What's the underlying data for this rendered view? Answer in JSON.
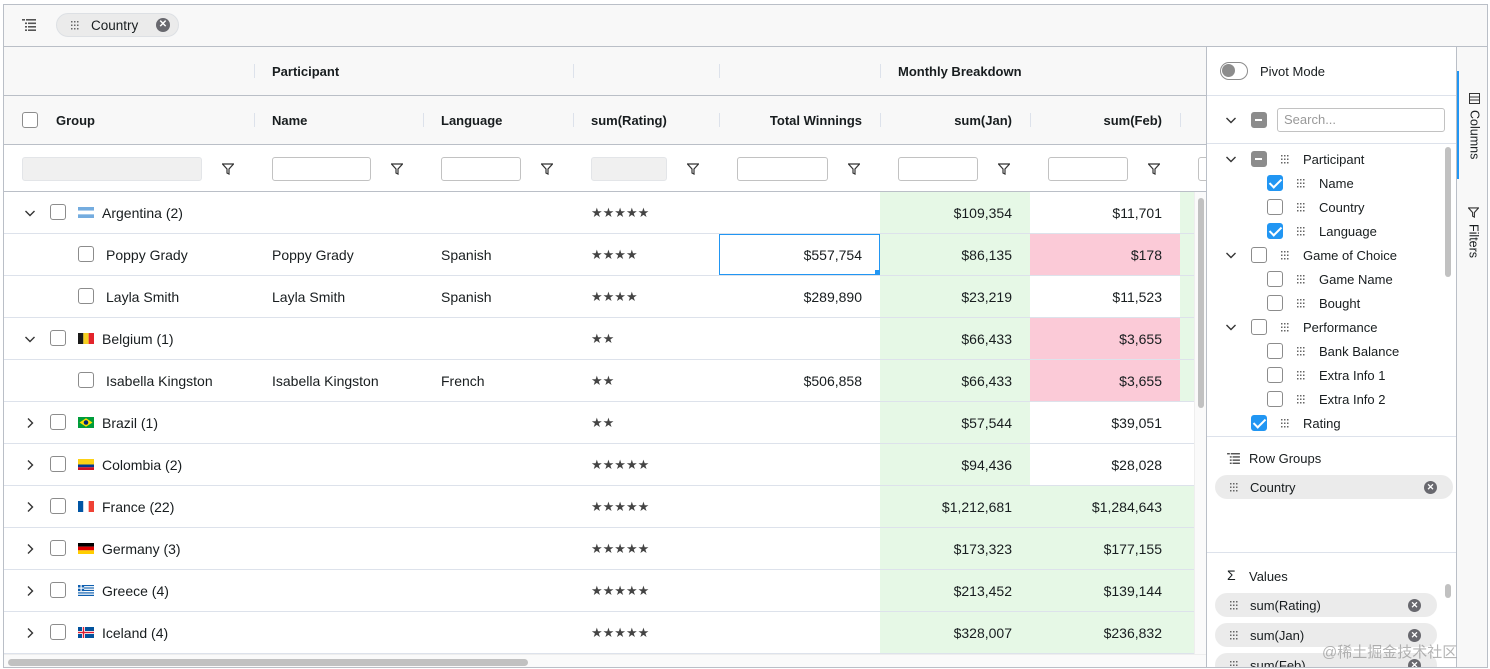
{
  "row_group_bar": {
    "chip_label": "Country"
  },
  "header_groups": {
    "participant": "Participant",
    "monthly": "Monthly Breakdown"
  },
  "columns": {
    "group": "Group",
    "name": "Name",
    "language": "Language",
    "rating": "sum(Rating)",
    "winnings": "Total Winnings",
    "jan": "sum(Jan)",
    "feb": "sum(Feb)"
  },
  "rows": [
    {
      "group": "Argentina (2)",
      "name": "",
      "language": "",
      "rating": "★★★★★",
      "winnings": "",
      "jan": "$109,354",
      "feb": "$11,701"
    },
    {
      "group": "Poppy Grady",
      "name": "Poppy Grady",
      "language": "Spanish",
      "rating": "★★★★",
      "winnings": "$557,754",
      "jan": "$86,135",
      "feb": "$178"
    },
    {
      "group": "Layla Smith",
      "name": "Layla Smith",
      "language": "Spanish",
      "rating": "★★★★",
      "winnings": "$289,890",
      "jan": "$23,219",
      "feb": "$11,523"
    },
    {
      "group": "Belgium (1)",
      "name": "",
      "language": "",
      "rating": "★★",
      "winnings": "",
      "jan": "$66,433",
      "feb": "$3,655"
    },
    {
      "group": "Isabella Kingston",
      "name": "Isabella Kingston",
      "language": "French",
      "rating": "★★",
      "winnings": "$506,858",
      "jan": "$66,433",
      "feb": "$3,655"
    },
    {
      "group": "Brazil (1)",
      "name": "",
      "language": "",
      "rating": "★★",
      "winnings": "",
      "jan": "$57,544",
      "feb": "$39,051"
    },
    {
      "group": "Colombia (2)",
      "name": "",
      "language": "",
      "rating": "★★★★★",
      "winnings": "",
      "jan": "$94,436",
      "feb": "$28,028"
    },
    {
      "group": "France (22)",
      "name": "",
      "language": "",
      "rating": "★★★★★",
      "winnings": "",
      "jan": "$1,212,681",
      "feb": "$1,284,643"
    },
    {
      "group": "Germany (3)",
      "name": "",
      "language": "",
      "rating": "★★★★★",
      "winnings": "",
      "jan": "$173,323",
      "feb": "$177,155"
    },
    {
      "group": "Greece (4)",
      "name": "",
      "language": "",
      "rating": "★★★★★",
      "winnings": "",
      "jan": "$213,452",
      "feb": "$139,144"
    },
    {
      "group": "Iceland (4)",
      "name": "",
      "language": "",
      "rating": "★★★★★",
      "winnings": "",
      "jan": "$328,007",
      "feb": "$236,832"
    }
  ],
  "side_panel": {
    "pivot_mode": "Pivot Mode",
    "search_placeholder": "Search...",
    "tree": {
      "participant": "Participant",
      "name": "Name",
      "country": "Country",
      "language": "Language",
      "game_of_choice": "Game of Choice",
      "game_name": "Game Name",
      "bought": "Bought",
      "performance": "Performance",
      "bank_balance": "Bank Balance",
      "extra1": "Extra Info 1",
      "extra2": "Extra Info 2",
      "rating": "Rating"
    },
    "row_groups_title": "Row Groups",
    "row_group_chip": "Country",
    "values_title": "Values",
    "values": [
      "sum(Rating)",
      "sum(Jan)",
      "sum(Feb)"
    ]
  },
  "side_tabs": {
    "columns": "Columns",
    "filters": "Filters"
  },
  "watermark": "@稀土掘金技术社区",
  "colors": {
    "accent": "#2196f3",
    "green_cell": "#e6f8e6",
    "pink_cell": "#fbcad7"
  }
}
